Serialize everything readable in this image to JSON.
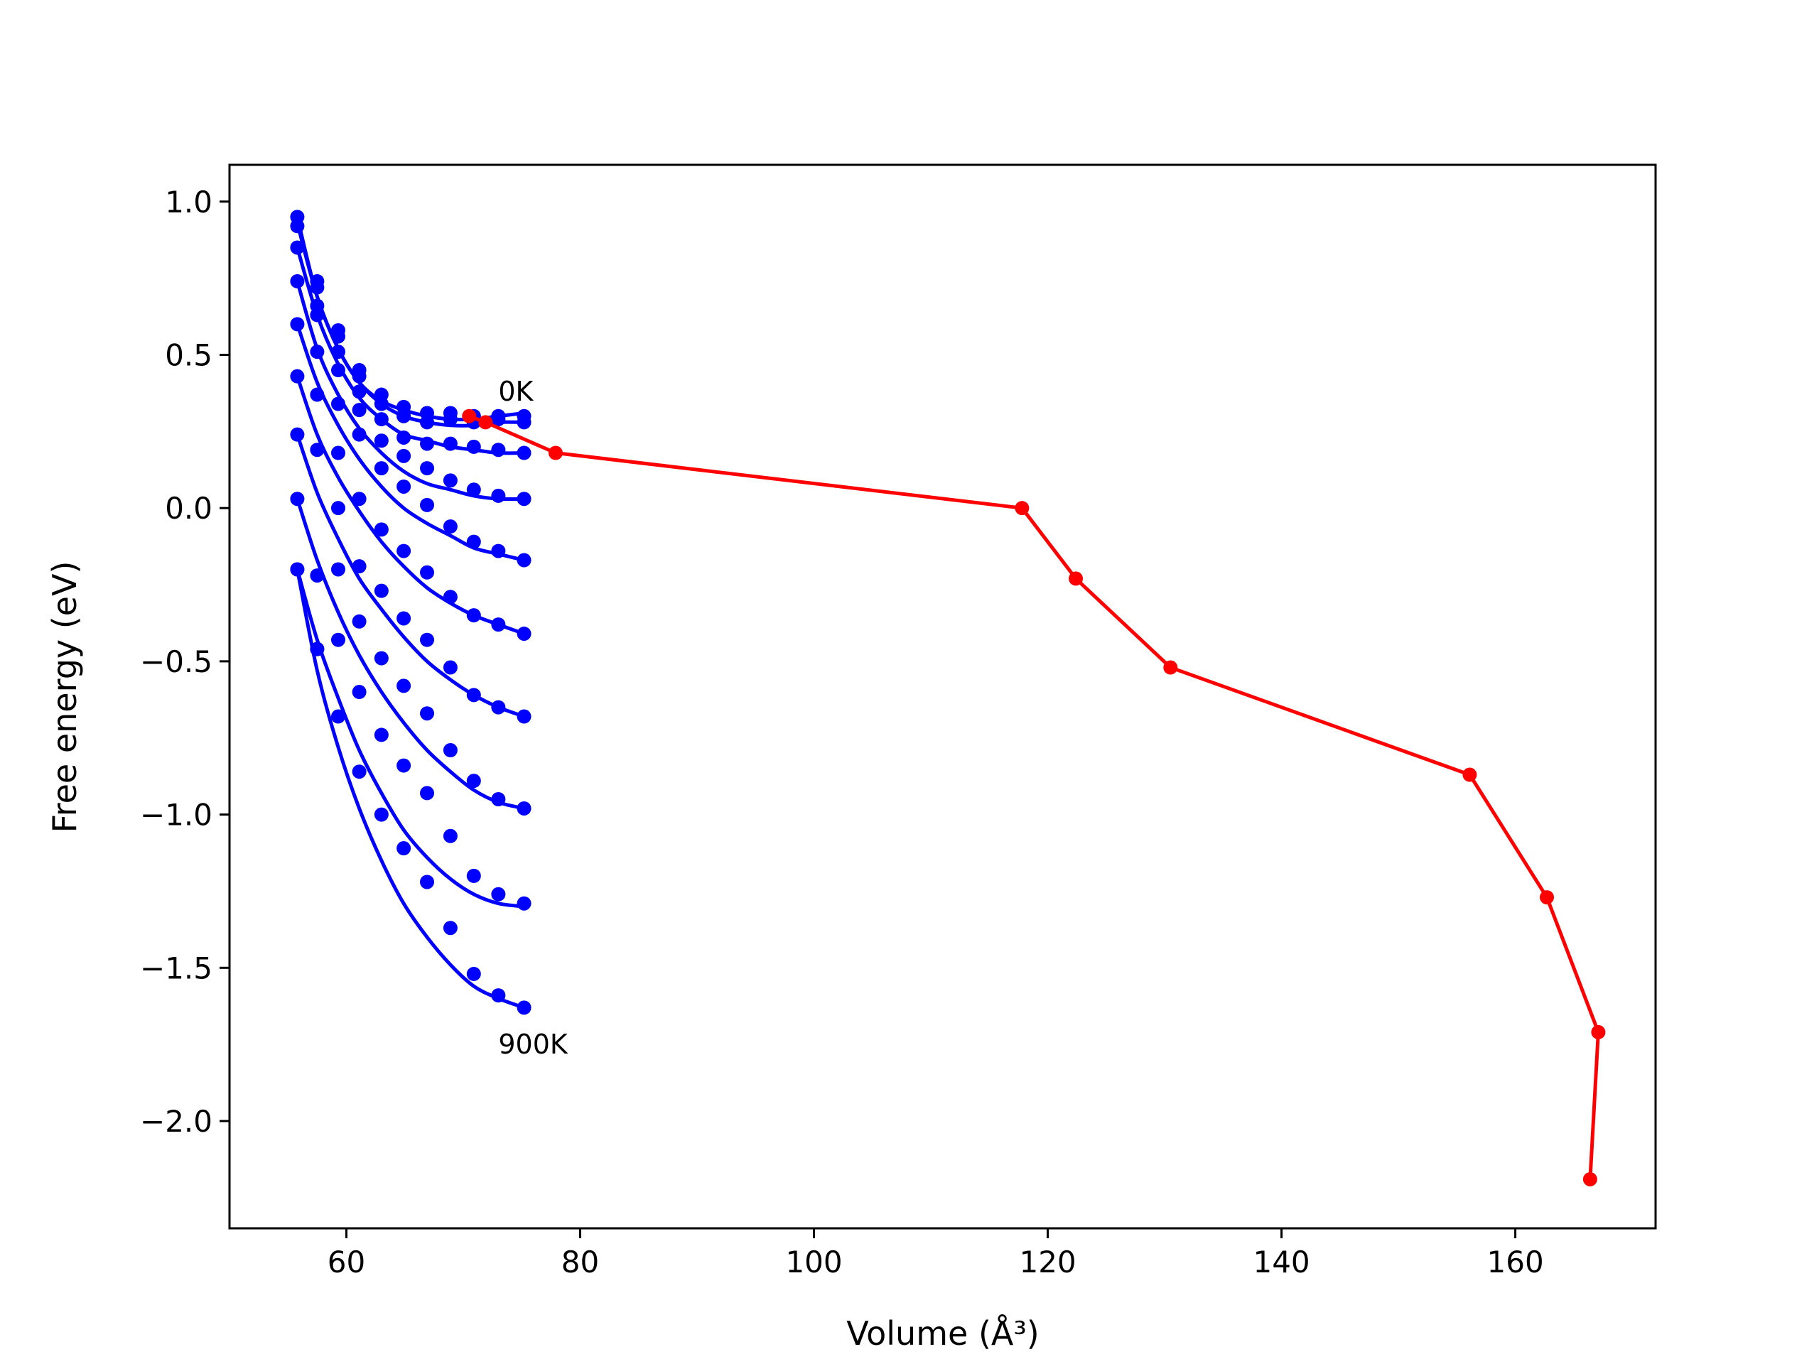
{
  "chart_data": {
    "type": "line",
    "title": "",
    "xlabel": "Volume",
    "xlabel_unit": "(Å³)",
    "ylabel": "Free energy (eV)",
    "xlim": [
      50,
      172
    ],
    "ylim": [
      -2.35,
      1.12
    ],
    "xticks": [
      60,
      80,
      100,
      120,
      140,
      160
    ],
    "yticks": [
      1.0,
      0.5,
      0.0,
      -0.5,
      -1.0,
      -1.5,
      -2.0
    ],
    "xtick_labels": [
      "60",
      "80",
      "100",
      "120",
      "140",
      "160"
    ],
    "ytick_labels": [
      "1.0",
      "0.5",
      "0.0",
      "−0.5",
      "−1.0",
      "−1.5",
      "−2.0"
    ],
    "grid": false,
    "legend": "none",
    "annotations": [
      {
        "text": "0K",
        "x": 73.0,
        "y": 0.35
      },
      {
        "text": "900K",
        "x": 73.0,
        "y": -1.78
      }
    ],
    "volumes": [
      55.8,
      57.5,
      59.3,
      61.1,
      63.0,
      64.9,
      66.9,
      68.9,
      70.9,
      73.0,
      75.2
    ],
    "series": [
      {
        "fit": [
          0.95,
          0.69,
          0.52,
          0.41,
          0.35,
          0.32,
          0.3,
          0.29,
          0.29,
          0.3,
          0.31
        ],
        "points": [
          0.95,
          0.74,
          0.58,
          0.45,
          0.37,
          0.33,
          0.31,
          0.31,
          0.3,
          0.3,
          0.3
        ]
      },
      {
        "fit": [
          0.93,
          0.69,
          0.52,
          0.41,
          0.34,
          0.3,
          0.28,
          0.27,
          0.27,
          0.28,
          0.28
        ],
        "points": [
          0.92,
          0.72,
          0.56,
          0.43,
          0.34,
          0.3,
          0.28,
          0.29,
          0.28,
          0.29,
          0.28
        ]
      },
      {
        "fit": [
          0.85,
          0.63,
          0.47,
          0.36,
          0.29,
          0.24,
          0.22,
          0.2,
          0.19,
          0.18,
          0.18
        ],
        "points": [
          0.85,
          0.66,
          0.51,
          0.38,
          0.29,
          0.23,
          0.21,
          0.21,
          0.2,
          0.19,
          0.18
        ]
      },
      {
        "fit": [
          0.74,
          0.52,
          0.37,
          0.26,
          0.18,
          0.12,
          0.08,
          0.06,
          0.04,
          0.03,
          0.03
        ],
        "points": [
          0.74,
          0.63,
          0.45,
          0.32,
          0.22,
          0.17,
          0.13,
          0.09,
          0.06,
          0.04,
          0.03
        ]
      },
      {
        "fit": [
          0.6,
          0.41,
          0.27,
          0.16,
          0.07,
          0.0,
          -0.05,
          -0.09,
          -0.13,
          -0.15,
          -0.17
        ],
        "points": [
          0.6,
          0.51,
          0.34,
          0.24,
          0.13,
          0.07,
          0.01,
          -0.06,
          -0.11,
          -0.14,
          -0.17
        ]
      },
      {
        "fit": [
          0.43,
          0.24,
          0.1,
          -0.01,
          -0.11,
          -0.19,
          -0.26,
          -0.31,
          -0.35,
          -0.38,
          -0.41
        ],
        "points": [
          0.43,
          0.37,
          0.18,
          0.03,
          -0.07,
          -0.14,
          -0.21,
          -0.29,
          -0.35,
          -0.38,
          -0.41
        ]
      },
      {
        "fit": [
          0.24,
          0.05,
          -0.1,
          -0.23,
          -0.33,
          -0.42,
          -0.5,
          -0.56,
          -0.61,
          -0.65,
          -0.68
        ],
        "points": [
          0.24,
          0.19,
          0.0,
          -0.19,
          -0.27,
          -0.36,
          -0.43,
          -0.52,
          -0.61,
          -0.65,
          -0.68
        ]
      },
      {
        "fit": [
          0.03,
          -0.17,
          -0.34,
          -0.48,
          -0.6,
          -0.7,
          -0.79,
          -0.86,
          -0.92,
          -0.96,
          -0.98
        ],
        "points": [
          0.03,
          -0.22,
          -0.2,
          -0.37,
          -0.49,
          -0.58,
          -0.67,
          -0.79,
          -0.89,
          -0.95,
          -0.98
        ]
      },
      {
        "fit": [
          -0.2,
          -0.43,
          -0.62,
          -0.79,
          -0.93,
          -1.05,
          -1.14,
          -1.21,
          -1.26,
          -1.29,
          -1.3
        ],
        "points": [
          -0.2,
          -0.46,
          -0.43,
          -0.6,
          -0.74,
          -0.84,
          -0.93,
          -1.07,
          -1.2,
          -1.26,
          -1.29
        ]
      },
      {
        "fit": [
          -0.2,
          -0.53,
          -0.78,
          -0.98,
          -1.15,
          -1.29,
          -1.4,
          -1.49,
          -1.56,
          -1.6,
          -1.63
        ],
        "points": [
          -0.2,
          -0.46,
          -0.68,
          -0.86,
          -1.0,
          -1.11,
          -1.22,
          -1.37,
          -1.52,
          -1.59,
          -1.63
        ]
      }
    ],
    "min_path": {
      "x": [
        70.5,
        71.9,
        77.9,
        117.8,
        122.4,
        130.5,
        156.1,
        162.7,
        167.1,
        166.4
      ],
      "y": [
        0.3,
        0.28,
        0.18,
        0.0,
        -0.23,
        -0.52,
        -0.87,
        -1.27,
        -1.71,
        -2.19
      ]
    },
    "colors": {
      "curves": "#0000ff",
      "min_path": "#ff0000",
      "axes": "#000000"
    }
  }
}
